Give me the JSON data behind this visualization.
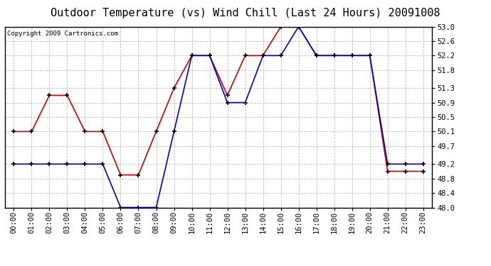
{
  "title": "Outdoor Temperature (vs) Wind Chill (Last 24 Hours) 20091008",
  "copyright": "Copyright 2009 Cartronics.com",
  "x_labels": [
    "00:00",
    "01:00",
    "02:00",
    "03:00",
    "04:00",
    "05:00",
    "06:00",
    "07:00",
    "08:00",
    "09:00",
    "10:00",
    "11:00",
    "12:00",
    "13:00",
    "14:00",
    "15:00",
    "16:00",
    "17:00",
    "18:00",
    "19:00",
    "20:00",
    "21:00",
    "22:00",
    "23:00"
  ],
  "x_values": [
    0,
    1,
    2,
    3,
    4,
    5,
    6,
    7,
    8,
    9,
    10,
    11,
    12,
    13,
    14,
    15,
    16,
    17,
    18,
    19,
    20,
    21,
    22,
    23
  ],
  "red_line": [
    50.1,
    50.1,
    51.1,
    51.1,
    50.1,
    50.1,
    48.9,
    48.9,
    50.1,
    51.3,
    52.2,
    52.2,
    51.1,
    52.2,
    52.2,
    53.0,
    53.0,
    52.2,
    52.2,
    52.2,
    52.2,
    49.0,
    49.0,
    49.0
  ],
  "blue_line": [
    49.2,
    49.2,
    49.2,
    49.2,
    49.2,
    49.2,
    48.0,
    48.0,
    48.0,
    50.1,
    52.2,
    52.2,
    50.9,
    50.9,
    52.2,
    52.2,
    53.0,
    52.2,
    52.2,
    52.2,
    52.2,
    49.2,
    49.2,
    49.2
  ],
  "ylim": [
    48.0,
    53.0
  ],
  "yticks": [
    48.0,
    48.4,
    48.8,
    49.2,
    49.7,
    50.1,
    50.5,
    50.9,
    51.3,
    51.8,
    52.2,
    52.6,
    53.0
  ],
  "red_color": "#cc0000",
  "blue_color": "#0000cc",
  "bg_color": "#ffffff",
  "plot_bg_color": "#ffffff",
  "grid_color": "#bbbbbb",
  "title_fontsize": 11,
  "copyright_fontsize": 6.5,
  "tick_fontsize": 7.5
}
